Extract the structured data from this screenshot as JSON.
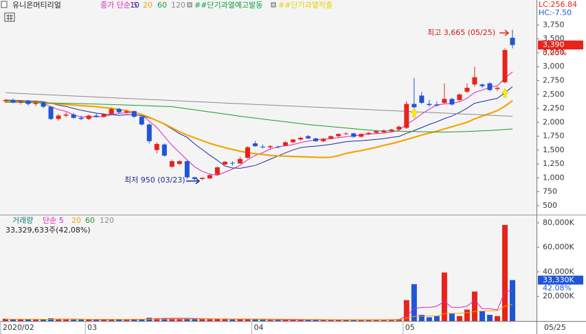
{
  "chart_data": [
    {
      "type": "candlestick",
      "title": "유니온머티리얼",
      "categories": [
        "2020/02",
        null,
        null,
        null,
        null,
        null,
        null,
        null,
        null,
        null,
        null,
        "03",
        null,
        null,
        null,
        null,
        null,
        null,
        null,
        null,
        null,
        null,
        null,
        null,
        null,
        null,
        null,
        null,
        null,
        null,
        null,
        null,
        null,
        "04",
        null,
        null,
        null,
        null,
        null,
        null,
        null,
        null,
        null,
        null,
        null,
        null,
        null,
        null,
        null,
        null,
        null,
        null,
        null,
        "05",
        null,
        null,
        null,
        null,
        null,
        null,
        null,
        null,
        null,
        null,
        null,
        null,
        null,
        null
      ],
      "ohlc": [
        [
          2380,
          2420,
          2350,
          2400
        ],
        [
          2400,
          2430,
          2340,
          2360
        ],
        [
          2360,
          2400,
          2320,
          2380
        ],
        [
          2380,
          2400,
          2300,
          2330
        ],
        [
          2330,
          2380,
          2290,
          2350
        ],
        [
          2350,
          2370,
          2250,
          2280
        ],
        [
          2280,
          2290,
          2040,
          2060
        ],
        [
          2060,
          2150,
          2030,
          2120
        ],
        [
          2120,
          2180,
          2090,
          2140
        ],
        [
          2140,
          2170,
          2060,
          2080
        ],
        [
          2080,
          2120,
          2040,
          2060
        ],
        [
          2060,
          2140,
          2040,
          2120
        ],
        [
          2120,
          2160,
          2080,
          2100
        ],
        [
          2100,
          2160,
          2080,
          2150
        ],
        [
          2150,
          2260,
          2140,
          2240
        ],
        [
          2240,
          2260,
          2160,
          2180
        ],
        [
          2180,
          2230,
          2150,
          2200
        ],
        [
          2200,
          2210,
          2080,
          2100
        ],
        [
          2100,
          2120,
          1940,
          1960
        ],
        [
          1960,
          1980,
          1620,
          1660
        ],
        [
          1500,
          1640,
          1440,
          1610
        ],
        [
          1600,
          1620,
          1380,
          1400
        ],
        [
          1200,
          1330,
          1180,
          1300
        ],
        [
          1250,
          1320,
          1230,
          1300
        ],
        [
          1300,
          1310,
          980,
          1010
        ],
        [
          1010,
          1020,
          950,
          980
        ],
        [
          980,
          1010,
          960,
          1000
        ],
        [
          990,
          1060,
          980,
          1050
        ],
        [
          1060,
          1200,
          1050,
          1190
        ],
        [
          1240,
          1300,
          1230,
          1290
        ],
        [
          1270,
          1300,
          1220,
          1260
        ],
        [
          1260,
          1380,
          1250,
          1340
        ],
        [
          1360,
          1570,
          1350,
          1550
        ],
        [
          1620,
          1660,
          1560,
          1570
        ],
        [
          1560,
          1600,
          1530,
          1550
        ],
        [
          1550,
          1590,
          1520,
          1570
        ],
        [
          1560,
          1580,
          1530,
          1550
        ],
        [
          1580,
          1660,
          1570,
          1640
        ],
        [
          1640,
          1700,
          1620,
          1690
        ],
        [
          1690,
          1740,
          1670,
          1720
        ],
        [
          1750,
          1770,
          1700,
          1710
        ],
        [
          1710,
          1720,
          1650,
          1660
        ],
        [
          1660,
          1720,
          1640,
          1700
        ],
        [
          1700,
          1760,
          1690,
          1750
        ],
        [
          1750,
          1800,
          1730,
          1790
        ],
        [
          1790,
          1820,
          1770,
          1800
        ],
        [
          1800,
          1810,
          1720,
          1740
        ],
        [
          1740,
          1800,
          1730,
          1790
        ],
        [
          1790,
          1820,
          1770,
          1810
        ],
        [
          1810,
          1860,
          1790,
          1840
        ],
        [
          1820,
          1870,
          1800,
          1850
        ],
        [
          1840,
          1880,
          1820,
          1870
        ],
        [
          1870,
          1940,
          1860,
          1920
        ],
        [
          1900,
          2380,
          1880,
          2330
        ],
        [
          2330,
          2800,
          2250,
          2270
        ],
        [
          2480,
          2550,
          2330,
          2350
        ],
        [
          2330,
          2400,
          2280,
          2310
        ],
        [
          2320,
          2370,
          2280,
          2300
        ],
        [
          2350,
          2700,
          2330,
          2420
        ],
        [
          2420,
          2440,
          2300,
          2320
        ],
        [
          2400,
          2520,
          2380,
          2500
        ],
        [
          2550,
          2700,
          2530,
          2620
        ],
        [
          2680,
          3000,
          2640,
          2810
        ],
        [
          2680,
          2700,
          2620,
          2650
        ],
        [
          2700,
          2720,
          2560,
          2580
        ],
        [
          2600,
          2640,
          2560,
          2620
        ],
        [
          2720,
          3330,
          2700,
          3300
        ],
        [
          3520,
          3665,
          3330,
          3390
        ]
      ],
      "up_color": "#e8231a",
      "down_color": "#1f55d6",
      "series": [
        {
          "name": "종가 단순 5",
          "color": "#e020c0",
          "values": [
            2390,
            2380,
            2375,
            2365,
            2364,
            2340,
            2280,
            2228,
            2196,
            2136,
            2092,
            2100,
            2100,
            2102,
            2134,
            2158,
            2174,
            2174,
            2136,
            2020,
            1906,
            1746,
            1586,
            1454,
            1324,
            1198,
            1118,
            1068,
            1046,
            1102,
            1158,
            1226,
            1326,
            1402,
            1454,
            1516,
            1558,
            1576,
            1600,
            1634,
            1662,
            1684,
            1696,
            1708,
            1722,
            1740,
            1756,
            1774,
            1786,
            1796,
            1806,
            1822,
            1858,
            1962,
            2048,
            2148,
            2236,
            2312,
            2330,
            2340,
            2370,
            2432,
            2534,
            2580,
            2632,
            2656,
            2792,
            2908
          ]
        },
        {
          "name": "10",
          "color": "#1a2a9a",
          "values": [
            2400,
            2395,
            2390,
            2385,
            2380,
            2370,
            2340,
            2310,
            2285,
            2250,
            2216,
            2190,
            2164,
            2149,
            2135,
            2125,
            2137,
            2137,
            2119,
            2078,
            2033,
            1960,
            1880,
            1795,
            1729,
            1609,
            1510,
            1407,
            1316,
            1213,
            1178,
            1172,
            1197,
            1224,
            1278,
            1337,
            1392,
            1451,
            1501,
            1544,
            1560,
            1570,
            1585,
            1603,
            1627,
            1650,
            1660,
            1667,
            1679,
            1691,
            1706,
            1727,
            1744,
            1802,
            1850,
            1905,
            1962,
            2009,
            2067,
            2112,
            2178,
            2253,
            2343,
            2372,
            2403,
            2430,
            2530,
            2640
          ]
        },
        {
          "name": "20",
          "color": "#f5a300",
          "values": [
            2380,
            2375,
            2370,
            2365,
            2360,
            2350,
            2340,
            2330,
            2320,
            2310,
            2300,
            2290,
            2280,
            2265,
            2250,
            2230,
            2205,
            2180,
            2140,
            2090,
            2030,
            1970,
            1900,
            1830,
            1770,
            1720,
            1670,
            1620,
            1580,
            1545,
            1510,
            1480,
            1455,
            1435,
            1420,
            1405,
            1395,
            1390,
            1385,
            1380,
            1375,
            1370,
            1365,
            1370,
            1400,
            1440,
            1465,
            1490,
            1520,
            1550,
            1585,
            1615,
            1650,
            1690,
            1730,
            1770,
            1805,
            1840,
            1880,
            1920,
            1960,
            2000,
            2060,
            2110,
            2160,
            2210,
            2290,
            2390
          ]
        },
        {
          "name": "60",
          "color": "#1a9a2a",
          "values": [
            2360,
            2358,
            2356,
            2354,
            2352,
            2350,
            2347,
            2344,
            2341,
            2338,
            2335,
            2331,
            2327,
            2323,
            2319,
            2315,
            2311,
            2306,
            2301,
            2296,
            2291,
            2286,
            2281,
            2262,
            2243,
            2224,
            2205,
            2186,
            2167,
            2148,
            2128,
            2108,
            2091,
            2074,
            2058,
            2041,
            2025,
            2008,
            1992,
            1975,
            1959,
            1947,
            1935,
            1922,
            1910,
            1897,
            1885,
            1872,
            1860,
            1848,
            1845,
            1842,
            1839,
            1836,
            1833,
            1830,
            1827,
            1825,
            1823,
            1826,
            1830,
            1835,
            1840,
            1846,
            1852,
            1860,
            1870,
            1880
          ]
        },
        {
          "name": "120",
          "color": "#8a8a8a",
          "values": [
            2530,
            2524,
            2517,
            2511,
            2505,
            2498,
            2492,
            2486,
            2480,
            2473,
            2467,
            2461,
            2454,
            2448,
            2442,
            2435,
            2429,
            2423,
            2417,
            2410,
            2404,
            2398,
            2391,
            2385,
            2379,
            2372,
            2366,
            2360,
            2354,
            2347,
            2341,
            2335,
            2328,
            2322,
            2316,
            2309,
            2303,
            2297,
            2291,
            2284,
            2278,
            2272,
            2265,
            2259,
            2253,
            2246,
            2240,
            2234,
            2228,
            2221,
            2215,
            2209,
            2202,
            2196,
            2190,
            2183,
            2177,
            2171,
            2165,
            2158,
            2152,
            2146,
            2139,
            2133,
            2127,
            2120,
            2114,
            2108
          ]
        }
      ],
      "ylim": [
        350,
        4200
      ],
      "yticks": [
        {
          "value": 3750,
          "label": "3,750"
        },
        {
          "value": 3500,
          "label": "3,500"
        },
        {
          "value": 3250,
          "label": "3,250"
        },
        {
          "value": 3000,
          "label": "3,000"
        },
        {
          "value": 2750,
          "label": "2,750"
        },
        {
          "value": 2500,
          "label": "2,500"
        },
        {
          "value": 2250,
          "label": "2,250"
        },
        {
          "value": 2000,
          "label": "2,000"
        },
        {
          "value": 1750,
          "label": "1,750"
        },
        {
          "value": 1500,
          "label": "1,500"
        },
        {
          "value": 1250,
          "label": "1,250"
        },
        {
          "value": 1000,
          "label": "1,000"
        },
        750,
        500
      ],
      "signals": [
        "##단기과열예고발동",
        "##단기과열적출"
      ],
      "indicators": [
        "LC:256.84",
        "HC:-7.50"
      ],
      "annotations": [
        "최고 3,665 (05/25)",
        "최저 950 (03/23)"
      ],
      "current": {
        "value": 3390,
        "label": "3,390"
      },
      "change": {
        "value": 0,
        "label": "0.00%"
      },
      "date_label": "05/25"
    },
    {
      "type": "bar",
      "title": "거래량",
      "values": [
        1800,
        1500,
        1200,
        1300,
        1100,
        1400,
        2200,
        1600,
        1300,
        1200,
        1100,
        1300,
        1000,
        1100,
        1600,
        1200,
        1000,
        1300,
        1500,
        2600,
        2200,
        2400,
        2100,
        1800,
        2300,
        1900,
        1500,
        1400,
        1700,
        1600,
        1200,
        1400,
        1800,
        1300,
        1000,
        900,
        800,
        1100,
        1200,
        1000,
        900,
        800,
        900,
        1000,
        1100,
        900,
        800,
        900,
        1000,
        1100,
        1200,
        1300,
        1500,
        17000,
        30000,
        5000,
        3000,
        4000,
        39500,
        6000,
        4000,
        9300,
        24000,
        8000,
        5000,
        4000,
        78300,
        33330
      ],
      "series": [
        {
          "name": "단순 5",
          "color": "#e020c0",
          "values": [
            1400,
            1400,
            1400,
            1400,
            1380,
            1300,
            1440,
            1520,
            1560,
            1540,
            1480,
            1300,
            1180,
            1140,
            1220,
            1240,
            1240,
            1240,
            1320,
            1520,
            1720,
            2000,
            2160,
            2220,
            2160,
            2100,
            1920,
            1780,
            1760,
            1620,
            1480,
            1460,
            1540,
            1460,
            1340,
            1280,
            1160,
            1020,
            1000,
            1000,
            1000,
            1000,
            960,
            920,
            940,
            940,
            940,
            940,
            940,
            960,
            1000,
            1100,
            1220,
            4000,
            10000,
            11000,
            11000,
            12000,
            16000,
            11000,
            11000,
            12000,
            17000,
            10000,
            10000,
            9000,
            24000,
            25000
          ]
        },
        {
          "name": "20",
          "color": "#f5a300",
          "values": [
            1450,
            1450,
            1440,
            1430,
            1420,
            1410,
            1420,
            1430,
            1440,
            1440,
            1430,
            1420,
            1410,
            1400,
            1410,
            1420,
            1420,
            1430,
            1440,
            1480,
            1520,
            1560,
            1600,
            1620,
            1650,
            1680,
            1690,
            1700,
            1720,
            1730,
            1700,
            1680,
            1660,
            1640,
            1600,
            1560,
            1500,
            1440,
            1380,
            1330,
            1280,
            1220,
            1160,
            1110,
            1070,
            1050,
            1030,
            1010,
            1000,
            990,
            990,
            1000,
            1010,
            2300,
            3700,
            3900,
            4000,
            4100,
            6000,
            6200,
            6300,
            6700,
            7800,
            8100,
            8300,
            8400,
            12000,
            13500
          ]
        }
      ],
      "other_legend": [
        "60",
        "120"
      ],
      "ylim": [
        0,
        85000
      ],
      "yticks": [
        {
          "value": 80000,
          "label": "80,000K"
        },
        {
          "value": 60000,
          "label": "60,000K"
        },
        {
          "value": 40000,
          "label": "40,000K"
        },
        {
          "value": 20000,
          "label": "20,000K"
        }
      ],
      "summary": "33,329,633주(42,08%)",
      "current": {
        "value": 33330,
        "label": "33,330K"
      },
      "ratio": {
        "value": 42.08,
        "label": "42.08%"
      }
    }
  ]
}
